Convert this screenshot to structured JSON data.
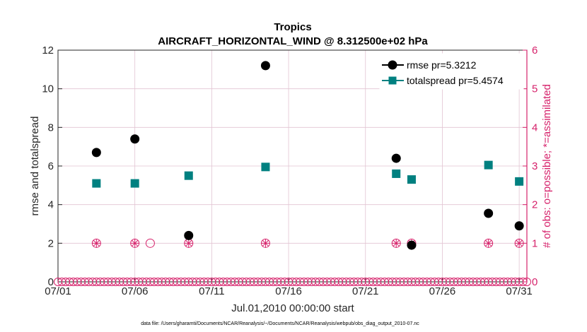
{
  "chart_data": {
    "type": "scatter",
    "title": "Tropics",
    "subtitle": "AIRCRAFT_HORIZONTAL_WIND @ 8.312500e+02 hPa",
    "xlabel": "Jul.01,2010 00:00:00 start",
    "ylabel": "rmse and totalspread",
    "y2label": "# of obs: o=possible; *=assimilated",
    "footnote": "data file: /Users/gharamti/Documents/NCAR/Reanalysis/~/Documents/NCAR/Reanalysis/webpub/obs_diag_output_2010-07.nc",
    "xlim": [
      1,
      31.5
    ],
    "ylim": [
      0,
      12
    ],
    "y2lim": [
      0,
      6
    ],
    "x_ticks": [
      1,
      6,
      11,
      16,
      21,
      26,
      31
    ],
    "x_tick_labels": [
      "07/01",
      "07/06",
      "07/11",
      "07/16",
      "07/21",
      "07/26",
      "07/31"
    ],
    "y_ticks": [
      0,
      2,
      4,
      6,
      8,
      10,
      12
    ],
    "y_tick_labels": [
      "0",
      "2",
      "4",
      "6",
      "8",
      "10",
      "12"
    ],
    "y2_ticks": [
      0,
      1,
      2,
      3,
      4,
      5,
      6
    ],
    "y2_tick_labels": [
      "0",
      "1",
      "2",
      "3",
      "4",
      "5",
      "6"
    ],
    "legend_position": "top-right",
    "colors": {
      "rmse": "#000000",
      "totalspread": "#008080",
      "obs": "#d6226b",
      "grid": "#e2c4d2"
    },
    "series": [
      {
        "name": "rmse pr=5.3212",
        "axis": "left",
        "points": [
          {
            "x": 3.5,
            "y": 6.7
          },
          {
            "x": 6.0,
            "y": 7.4
          },
          {
            "x": 9.5,
            "y": 2.4
          },
          {
            "x": 14.5,
            "y": 11.2
          },
          {
            "x": 23.0,
            "y": 6.4
          },
          {
            "x": 24.0,
            "y": 1.9
          },
          {
            "x": 29.0,
            "y": 3.55
          },
          {
            "x": 31.0,
            "y": 2.9
          }
        ]
      },
      {
        "name": "totalspread pr=5.4574",
        "axis": "left",
        "points": [
          {
            "x": 3.5,
            "y": 5.1
          },
          {
            "x": 6.0,
            "y": 5.1
          },
          {
            "x": 9.5,
            "y": 5.5
          },
          {
            "x": 14.5,
            "y": 5.95
          },
          {
            "x": 23.0,
            "y": 5.6
          },
          {
            "x": 24.0,
            "y": 5.3
          },
          {
            "x": 29.0,
            "y": 6.05
          },
          {
            "x": 31.0,
            "y": 5.2
          }
        ]
      },
      {
        "name": "obs possible",
        "axis": "right",
        "marker": "circle",
        "points": [
          {
            "x": 3.5,
            "y": 1
          },
          {
            "x": 6.0,
            "y": 1
          },
          {
            "x": 7.0,
            "y": 1
          },
          {
            "x": 9.5,
            "y": 1
          },
          {
            "x": 14.5,
            "y": 1
          },
          {
            "x": 23.0,
            "y": 1
          },
          {
            "x": 24.0,
            "y": 1
          },
          {
            "x": 29.0,
            "y": 1
          },
          {
            "x": 31.0,
            "y": 1
          }
        ]
      },
      {
        "name": "obs assimilated",
        "axis": "right",
        "marker": "star",
        "points": [
          {
            "x": 3.5,
            "y": 1
          },
          {
            "x": 6.0,
            "y": 1
          },
          {
            "x": 9.5,
            "y": 1
          },
          {
            "x": 14.5,
            "y": 1
          },
          {
            "x": 23.0,
            "y": 1
          },
          {
            "x": 24.0,
            "y": 1
          },
          {
            "x": 29.0,
            "y": 1
          },
          {
            "x": 31.0,
            "y": 1
          }
        ]
      }
    ],
    "zero_obs_row": {
      "start": 1.0,
      "end": 31.5,
      "step": 0.25,
      "value": 0
    }
  }
}
